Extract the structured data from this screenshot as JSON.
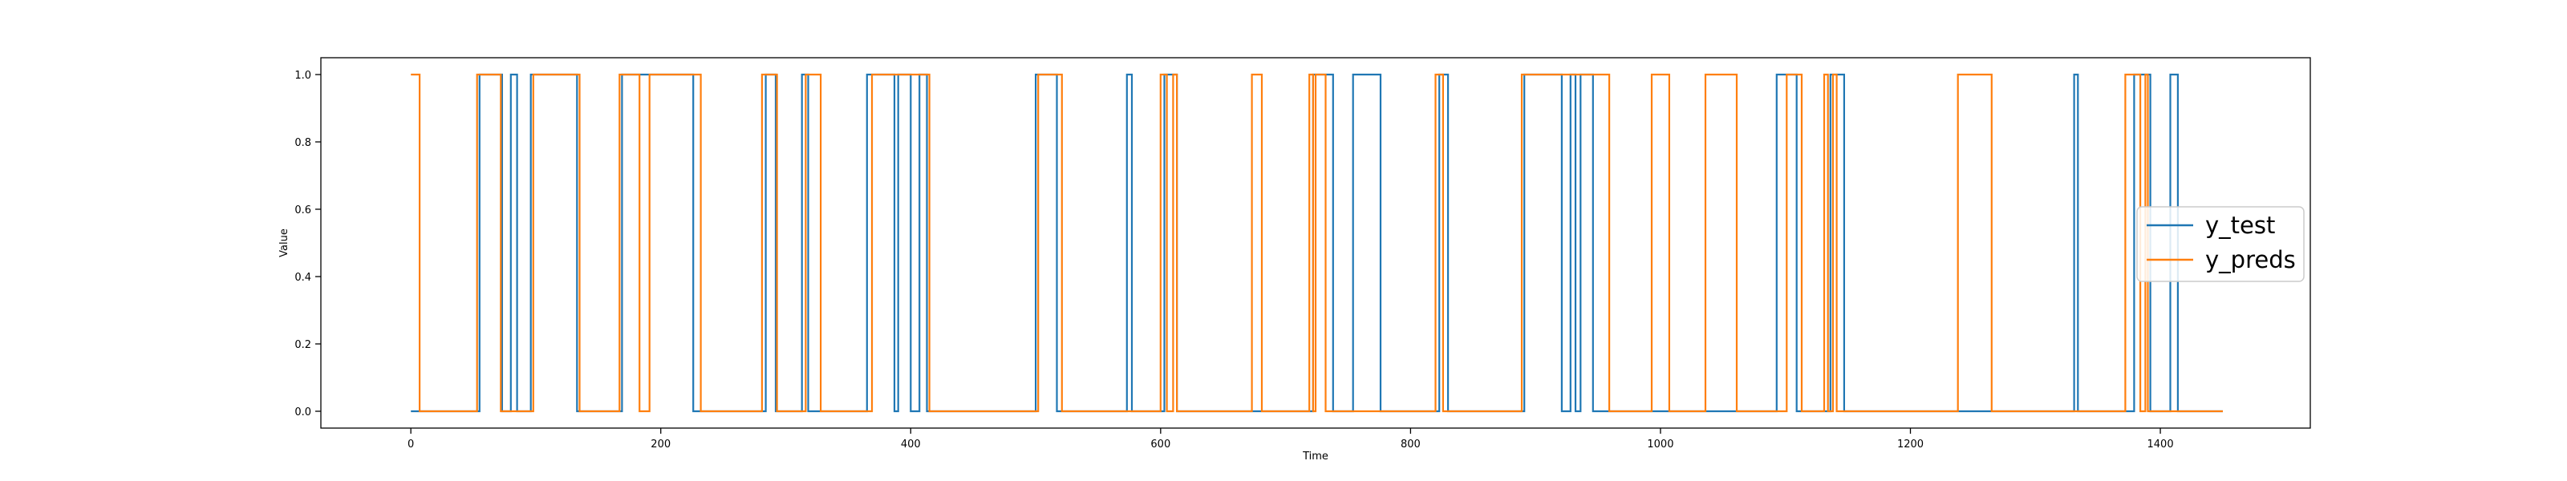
{
  "chart_data": {
    "type": "line",
    "step": true,
    "title": "",
    "xlabel": "Time",
    "ylabel": "Value",
    "xlim": [
      -72,
      1520
    ],
    "ylim": [
      -0.05,
      1.05
    ],
    "x_ticks": [
      "0",
      "200",
      "400",
      "600",
      "800",
      "1000",
      "1200",
      "1400"
    ],
    "y_ticks": [
      "0.0",
      "0.2",
      "0.4",
      "0.6",
      "0.8",
      "1.0"
    ],
    "x_tick_values": [
      0,
      200,
      400,
      600,
      800,
      1000,
      1200,
      1400
    ],
    "y_tick_values": [
      0.0,
      0.2,
      0.4,
      0.6,
      0.8,
      1.0
    ],
    "grid": false,
    "legend_position": "center-right",
    "x_end": 1450,
    "series": [
      {
        "name": "y_test",
        "color": "#1f77b4",
        "initial": 0,
        "transitions": [
          [
            55,
            1
          ],
          [
            73,
            0
          ],
          [
            80,
            1
          ],
          [
            85,
            0
          ],
          [
            96,
            1
          ],
          [
            133,
            0
          ],
          [
            169,
            1
          ],
          [
            226,
            0
          ],
          [
            284,
            1
          ],
          [
            292,
            0
          ],
          [
            313,
            1
          ],
          [
            318,
            0
          ],
          [
            365,
            1
          ],
          [
            387,
            0
          ],
          [
            390,
            1
          ],
          [
            400,
            0
          ],
          [
            407,
            1
          ],
          [
            413,
            0
          ],
          [
            500,
            1
          ],
          [
            517,
            0
          ],
          [
            573,
            1
          ],
          [
            577,
            0
          ],
          [
            603,
            1
          ],
          [
            613,
            0
          ],
          [
            722,
            1
          ],
          [
            738,
            0
          ],
          [
            754,
            1
          ],
          [
            776,
            0
          ],
          [
            823,
            1
          ],
          [
            830,
            0
          ],
          [
            891,
            1
          ],
          [
            921,
            0
          ],
          [
            928,
            1
          ],
          [
            932,
            0
          ],
          [
            936,
            1
          ],
          [
            946,
            0
          ],
          [
            1093,
            1
          ],
          [
            1109,
            0
          ],
          [
            1136,
            1
          ],
          [
            1147,
            0
          ],
          [
            1331,
            1
          ],
          [
            1334,
            0
          ],
          [
            1379,
            1
          ],
          [
            1392,
            0
          ],
          [
            1408,
            1
          ],
          [
            1414,
            0
          ]
        ]
      },
      {
        "name": "y_preds",
        "color": "#ff7f0e",
        "initial": 1,
        "transitions": [
          [
            7,
            0
          ],
          [
            53,
            1
          ],
          [
            72,
            0
          ],
          [
            98,
            1
          ],
          [
            135,
            0
          ],
          [
            167,
            1
          ],
          [
            183,
            0
          ],
          [
            191,
            1
          ],
          [
            232,
            0
          ],
          [
            281,
            1
          ],
          [
            293,
            0
          ],
          [
            316,
            1
          ],
          [
            328,
            0
          ],
          [
            369,
            1
          ],
          [
            415,
            0
          ],
          [
            502,
            1
          ],
          [
            521,
            0
          ],
          [
            600,
            1
          ],
          [
            605,
            0
          ],
          [
            610,
            1
          ],
          [
            613,
            0
          ],
          [
            673,
            1
          ],
          [
            681,
            0
          ],
          [
            719,
            1
          ],
          [
            722,
            0
          ],
          [
            724,
            1
          ],
          [
            732,
            0
          ],
          [
            820,
            1
          ],
          [
            826,
            0
          ],
          [
            889,
            1
          ],
          [
            959,
            0
          ],
          [
            993,
            1
          ],
          [
            1007,
            0
          ],
          [
            1036,
            1
          ],
          [
            1061,
            0
          ],
          [
            1101,
            1
          ],
          [
            1113,
            0
          ],
          [
            1131,
            1
          ],
          [
            1134,
            0
          ],
          [
            1138,
            1
          ],
          [
            1141,
            0
          ],
          [
            1238,
            1
          ],
          [
            1265,
            0
          ],
          [
            1372,
            1
          ],
          [
            1384,
            0
          ],
          [
            1388,
            1
          ],
          [
            1390,
            0
          ]
        ]
      }
    ]
  }
}
